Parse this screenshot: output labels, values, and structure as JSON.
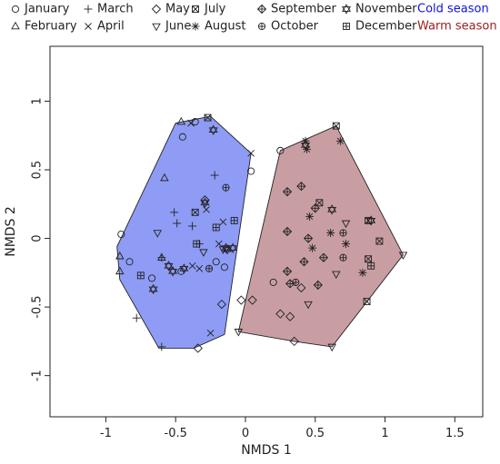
{
  "chart_data": {
    "type": "scatter",
    "xlabel": "NMDS 1",
    "ylabel": "NMDS 2",
    "xlim": [
      -1.4,
      1.7
    ],
    "ylim": [
      -1.3,
      1.4
    ],
    "xticks": [
      "-1",
      "-0.5",
      "0",
      "0.5",
      "1",
      "1.5"
    ],
    "xtick_values": [
      -1,
      -0.5,
      0,
      0.5,
      1,
      1.5
    ],
    "yticks": [
      "-1",
      "-0.5",
      "0",
      "0.5",
      "1"
    ],
    "ytick_values": [
      -1,
      -0.5,
      0,
      0.5,
      1
    ],
    "grid": false,
    "legend_position": "top",
    "legend_months": [
      {
        "label": "January",
        "marker": "circle"
      },
      {
        "label": "February",
        "marker": "triangle-up"
      },
      {
        "label": "March",
        "marker": "plus"
      },
      {
        "label": "April",
        "marker": "cross"
      },
      {
        "label": "May",
        "marker": "diamond"
      },
      {
        "label": "June",
        "marker": "triangle-down"
      },
      {
        "label": "July",
        "marker": "square-x"
      },
      {
        "label": "August",
        "marker": "asterisk"
      },
      {
        "label": "September",
        "marker": "diamond-plus"
      },
      {
        "label": "October",
        "marker": "circle-plus"
      },
      {
        "label": "November",
        "marker": "star-of-david"
      },
      {
        "label": "December",
        "marker": "square-plus"
      }
    ],
    "season_groups": [
      {
        "label": "Cold season",
        "color": "#1010e0",
        "fill": "#8e9cf5"
      },
      {
        "label": "Warm season",
        "color": "#9b1c1c",
        "fill": "#c99ea3"
      }
    ],
    "hulls": {
      "cold": [
        [
          -0.5,
          0.84
        ],
        [
          -0.25,
          0.89
        ],
        [
          0.04,
          0.62
        ],
        [
          -0.15,
          -0.7
        ],
        [
          -0.37,
          -0.8
        ],
        [
          -0.62,
          -0.8
        ],
        [
          -0.9,
          -0.3
        ],
        [
          -0.92,
          -0.06
        ]
      ],
      "warm": [
        [
          0.25,
          0.64
        ],
        [
          0.65,
          0.82
        ],
        [
          1.13,
          -0.12
        ],
        [
          0.62,
          -0.79
        ],
        [
          0.35,
          -0.75
        ],
        [
          -0.05,
          -0.68
        ]
      ]
    },
    "points": {
      "cold": [
        [
          -0.36,
          0.85,
          "circle"
        ],
        [
          -0.45,
          0.74,
          "circle"
        ],
        [
          0.04,
          0.49,
          "circle"
        ],
        [
          -0.83,
          -0.17,
          "circle"
        ],
        [
          -0.89,
          0.03,
          "circle"
        ],
        [
          -0.67,
          -0.29,
          "circle"
        ],
        [
          -0.46,
          -0.24,
          "circle"
        ],
        [
          -0.21,
          -0.17,
          "circle"
        ],
        [
          -0.15,
          -0.21,
          "circle"
        ],
        [
          -0.46,
          0.85,
          "triangle-up"
        ],
        [
          -0.58,
          0.44,
          "triangle-up"
        ],
        [
          -0.9,
          -0.13,
          "triangle-up"
        ],
        [
          -0.9,
          -0.24,
          "triangle-up"
        ],
        [
          -0.6,
          -0.14,
          "triangle-up"
        ],
        [
          -0.22,
          0.46,
          "plus"
        ],
        [
          -0.51,
          0.19,
          "plus"
        ],
        [
          -0.49,
          0.11,
          "plus"
        ],
        [
          -0.38,
          0.09,
          "plus"
        ],
        [
          -0.6,
          -0.14,
          "plus"
        ],
        [
          -0.78,
          -0.58,
          "plus"
        ],
        [
          -0.6,
          -0.79,
          "plus"
        ],
        [
          -0.33,
          -0.04,
          "plus"
        ],
        [
          -0.39,
          0.84,
          "cross"
        ],
        [
          0.04,
          0.62,
          "cross"
        ],
        [
          -0.28,
          0.21,
          "cross"
        ],
        [
          -0.16,
          0.12,
          "cross"
        ],
        [
          -0.19,
          -0.04,
          "cross"
        ],
        [
          -0.38,
          -0.2,
          "cross"
        ],
        [
          -0.25,
          -0.69,
          "cross"
        ],
        [
          -0.33,
          -0.22,
          "cross"
        ],
        [
          -0.34,
          -0.8,
          "diamond"
        ],
        [
          -0.17,
          -0.48,
          "diamond"
        ],
        [
          -0.29,
          0.28,
          "diamond"
        ],
        [
          -0.63,
          0.04,
          "triangle-down"
        ],
        [
          -0.3,
          -0.1,
          "triangle-down"
        ],
        [
          -0.16,
          -0.08,
          "triangle-down"
        ],
        [
          -0.27,
          0.88,
          "square-x"
        ],
        [
          -0.36,
          0.19,
          "square-x"
        ],
        [
          -0.55,
          -0.2,
          "star-of-david"
        ],
        [
          -0.66,
          -0.37,
          "star-of-david"
        ],
        [
          -0.52,
          -0.24,
          "star-of-david"
        ],
        [
          -0.44,
          -0.22,
          "star-of-david"
        ],
        [
          -0.29,
          0.26,
          "star-of-david"
        ],
        [
          -0.23,
          0.79,
          "star-of-david"
        ],
        [
          -0.13,
          -0.08,
          "star-of-david"
        ],
        [
          -0.09,
          -0.07,
          "star-of-david"
        ],
        [
          -0.14,
          -0.07,
          "star-of-david"
        ],
        [
          -0.26,
          -0.22,
          "circle-plus"
        ],
        [
          -0.14,
          0.37,
          "circle-plus"
        ],
        [
          -0.75,
          -0.27,
          "square-plus"
        ],
        [
          -0.35,
          -0.04,
          "square-plus"
        ],
        [
          -0.21,
          0.08,
          "square-plus"
        ],
        [
          -0.08,
          0.13,
          "square-plus"
        ]
      ],
      "warm": [
        [
          0.25,
          0.64,
          "circle"
        ],
        [
          0.2,
          -0.32,
          "circle"
        ],
        [
          -0.05,
          -0.68,
          "triangle-down"
        ],
        [
          0.62,
          -0.79,
          "triangle-down"
        ],
        [
          1.13,
          -0.12,
          "triangle-down"
        ],
        [
          0.45,
          -0.48,
          "triangle-down"
        ],
        [
          0.72,
          0.11,
          "triangle-down"
        ],
        [
          0.65,
          -0.26,
          "triangle-down"
        ],
        [
          0.35,
          -0.75,
          "diamond"
        ],
        [
          -0.03,
          -0.45,
          "diamond"
        ],
        [
          0.05,
          -0.45,
          "diamond"
        ],
        [
          0.25,
          -0.55,
          "diamond"
        ],
        [
          0.32,
          -0.57,
          "diamond"
        ],
        [
          0.4,
          -0.36,
          "diamond"
        ],
        [
          0.65,
          0.82,
          "square-x"
        ],
        [
          0.53,
          0.26,
          "square-x"
        ],
        [
          0.88,
          0.13,
          "square-x"
        ],
        [
          0.96,
          -0.02,
          "square-x"
        ],
        [
          0.88,
          -0.15,
          "square-x"
        ],
        [
          0.87,
          -0.46,
          "square-x"
        ],
        [
          0.43,
          0.71,
          "asterisk"
        ],
        [
          0.44,
          0.65,
          "asterisk"
        ],
        [
          0.68,
          0.71,
          "asterisk"
        ],
        [
          0.46,
          0.16,
          "asterisk"
        ],
        [
          0.61,
          0.04,
          "asterisk"
        ],
        [
          0.72,
          -0.04,
          "asterisk"
        ],
        [
          0.48,
          -0.07,
          "asterisk"
        ],
        [
          0.84,
          -0.25,
          "asterisk"
        ],
        [
          0.3,
          0.34,
          "diamond-plus"
        ],
        [
          0.4,
          0.38,
          "diamond-plus"
        ],
        [
          0.5,
          0.22,
          "diamond-plus"
        ],
        [
          0.3,
          0.05,
          "diamond-plus"
        ],
        [
          0.45,
          0.0,
          "diamond-plus"
        ],
        [
          0.56,
          -0.14,
          "diamond-plus"
        ],
        [
          0.42,
          -0.17,
          "diamond-plus"
        ],
        [
          0.3,
          -0.24,
          "diamond-plus"
        ],
        [
          0.32,
          -0.33,
          "diamond-plus"
        ],
        [
          0.52,
          -0.34,
          "diamond-plus"
        ],
        [
          0.43,
          0.68,
          "star-of-david"
        ],
        [
          0.62,
          0.21,
          "star-of-david"
        ],
        [
          0.9,
          0.13,
          "star-of-david"
        ],
        [
          0.7,
          0.04,
          "circle-plus"
        ],
        [
          0.7,
          -0.14,
          "circle-plus"
        ],
        [
          0.36,
          -0.32,
          "circle-plus"
        ],
        [
          0.9,
          -0.2,
          "square-plus"
        ]
      ]
    }
  }
}
